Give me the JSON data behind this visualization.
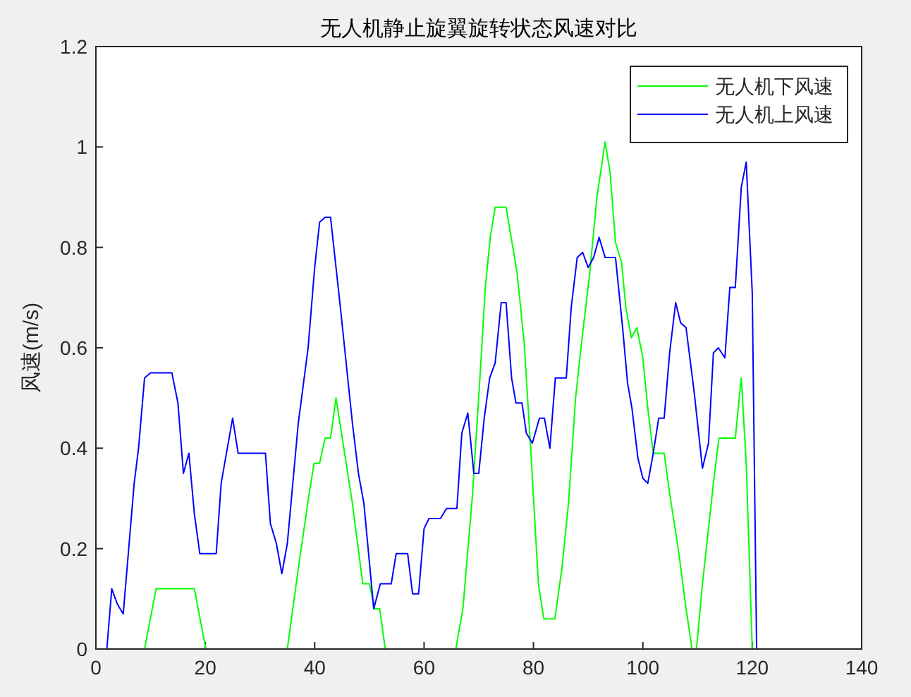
{
  "chart_data": {
    "type": "line",
    "title": "无人机静止旋翼旋转状态风速对比",
    "ylabel": "风速(m/s)",
    "xlim": [
      0,
      140
    ],
    "ylim": [
      0,
      1.2
    ],
    "xticks": [
      0,
      20,
      40,
      60,
      80,
      100,
      120,
      140
    ],
    "yticks": [
      0,
      0.2,
      0.4,
      0.6,
      0.8,
      1,
      1.2
    ],
    "legend": "top right",
    "line_style": "solid",
    "series": [
      {
        "name": "无人机下风速",
        "color": "#00ff00",
        "x": [
          1.4,
          8.9,
          11,
          18,
          20.1,
          35,
          37,
          39,
          39.9,
          40.9,
          41.9,
          42.9,
          43.9,
          46.9,
          48.8,
          50,
          51,
          51.9,
          52.9,
          65.8,
          67.1,
          68.8,
          70.1,
          71.2,
          72.1,
          73,
          75,
          77,
          78.3,
          79.6,
          80.9,
          81.9,
          83.9,
          85.2,
          86.4,
          87.7,
          89,
          90.3,
          91.6,
          93.1,
          94,
          95,
          96.1,
          96.9,
          97.9,
          98.9,
          100,
          100.9,
          101.9,
          103.9,
          104.9,
          106.6,
          107.9,
          109,
          109.8,
          110.9,
          112,
          112.9,
          113.9,
          116.9,
          118,
          118.9,
          120
        ],
        "values": [
          0,
          0,
          0.12,
          0.12,
          0,
          0,
          0.16,
          0.31,
          0.37,
          0.37,
          0.42,
          0.42,
          0.5,
          0.29,
          0.13,
          0.13,
          0.08,
          0.08,
          0,
          0,
          0.08,
          0.3,
          0.52,
          0.72,
          0.82,
          0.88,
          0.88,
          0.75,
          0.61,
          0.38,
          0.13,
          0.06,
          0.06,
          0.16,
          0.29,
          0.5,
          0.63,
          0.75,
          0.9,
          1.01,
          0.95,
          0.81,
          0.77,
          0.68,
          0.62,
          0.64,
          0.58,
          0.48,
          0.39,
          0.39,
          0.31,
          0.19,
          0.08,
          0,
          0,
          0.13,
          0.24,
          0.33,
          0.42,
          0.42,
          0.54,
          0.37,
          0
        ]
      },
      {
        "name": "无人机上风速",
        "color": "#0000ff",
        "x": [
          1.4,
          2,
          2.9,
          3.9,
          5,
          7,
          7.8,
          8.9,
          10,
          13.9,
          15,
          16,
          17,
          18,
          19,
          22,
          22.9,
          25,
          26,
          31,
          31.9,
          33,
          34,
          35,
          37,
          38.8,
          40,
          40.9,
          41.9,
          42.9,
          44.8,
          46.9,
          48,
          49,
          50.8,
          52,
          54,
          54.9,
          57,
          57.9,
          59,
          60,
          60.9,
          63,
          64.1,
          66,
          66.9,
          68,
          69.1,
          70,
          71,
          72,
          73,
          74.1,
          75,
          76,
          76.8,
          77.9,
          78.7,
          79.8,
          81.1,
          82,
          83,
          84,
          86,
          86.9,
          88,
          89,
          90,
          91,
          92,
          93.1,
          95,
          96.3,
          97.2,
          98,
          99.1,
          100,
          100.9,
          101.9,
          102.9,
          103.9,
          104.9,
          106,
          106.9,
          107.9,
          109.4,
          110.9,
          112,
          112.9,
          113.8,
          115,
          115.9,
          116.9,
          118,
          118.9,
          120,
          120.8
        ],
        "values": [
          0,
          0,
          0.12,
          0.09,
          0.07,
          0.33,
          0.4,
          0.54,
          0.55,
          0.55,
          0.49,
          0.35,
          0.39,
          0.27,
          0.19,
          0.19,
          0.33,
          0.46,
          0.39,
          0.39,
          0.25,
          0.21,
          0.15,
          0.21,
          0.45,
          0.6,
          0.76,
          0.85,
          0.86,
          0.86,
          0.67,
          0.45,
          0.35,
          0.29,
          0.08,
          0.13,
          0.13,
          0.19,
          0.19,
          0.11,
          0.11,
          0.24,
          0.26,
          0.26,
          0.28,
          0.28,
          0.43,
          0.47,
          0.35,
          0.35,
          0.46,
          0.54,
          0.57,
          0.69,
          0.69,
          0.54,
          0.49,
          0.49,
          0.43,
          0.41,
          0.46,
          0.46,
          0.4,
          0.54,
          0.54,
          0.68,
          0.78,
          0.79,
          0.76,
          0.78,
          0.82,
          0.78,
          0.78,
          0.64,
          0.53,
          0.48,
          0.38,
          0.34,
          0.33,
          0.39,
          0.46,
          0.46,
          0.59,
          0.69,
          0.65,
          0.64,
          0.51,
          0.36,
          0.41,
          0.59,
          0.6,
          0.58,
          0.72,
          0.72,
          0.92,
          0.97,
          0.71,
          0
        ]
      }
    ]
  }
}
